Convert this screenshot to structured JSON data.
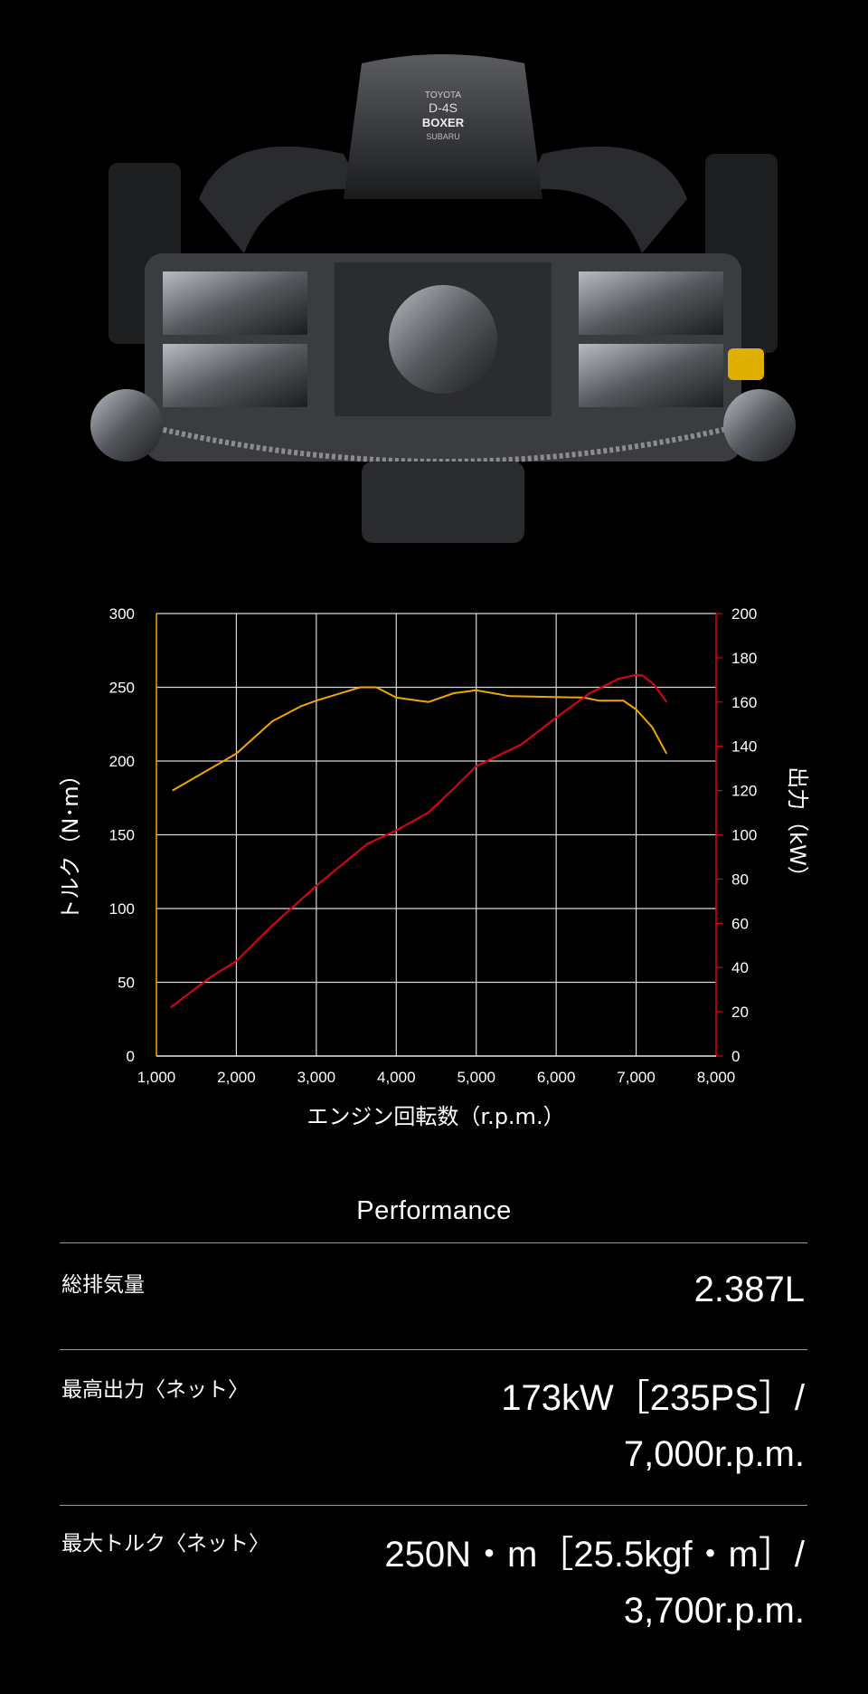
{
  "engine_image": {
    "badge_lines": [
      "TOYOTA",
      "D-4S",
      "BOXER",
      "SUBARU"
    ]
  },
  "chart_data": {
    "type": "line",
    "xlabel": "エンジン回転数（r.p.m.）",
    "ylabel_left": "トルク（N･m）",
    "ylabel_right": "出力（kW）",
    "xlim": [
      1000,
      8000
    ],
    "ylim_left": [
      0,
      300
    ],
    "ylim_right": [
      0,
      200
    ],
    "x_ticks": [
      "1,000",
      "2,000",
      "3,000",
      "4,000",
      "5,000",
      "6,000",
      "7,000",
      "8,000"
    ],
    "y_ticks_left": [
      "0",
      "50",
      "100",
      "150",
      "200",
      "250",
      "300"
    ],
    "y_ticks_right": [
      "0",
      "20",
      "40",
      "60",
      "80",
      "100",
      "120",
      "140",
      "160",
      "180",
      "200"
    ],
    "grid": true,
    "series": [
      {
        "axis": "left",
        "color": "#f0a800",
        "points": [
          [
            1200,
            180
          ],
          [
            2000,
            205
          ],
          [
            2450,
            227
          ],
          [
            2800,
            237
          ],
          [
            3000,
            241
          ],
          [
            3550,
            250
          ],
          [
            3750,
            250
          ],
          [
            4000,
            243
          ],
          [
            4400,
            240
          ],
          [
            4720,
            246
          ],
          [
            5000,
            248
          ],
          [
            5420,
            244
          ],
          [
            6350,
            243
          ],
          [
            6530,
            241
          ],
          [
            6840,
            241
          ],
          [
            7000,
            235
          ],
          [
            7200,
            223
          ],
          [
            7380,
            205
          ]
        ]
      },
      {
        "axis": "right",
        "color": "#e0001a",
        "points": [
          [
            1180,
            22
          ],
          [
            1650,
            35
          ],
          [
            2000,
            43
          ],
          [
            2450,
            59
          ],
          [
            3000,
            77
          ],
          [
            3640,
            96
          ],
          [
            4000,
            102
          ],
          [
            4400,
            110
          ],
          [
            4720,
            121
          ],
          [
            5000,
            131
          ],
          [
            5570,
            141
          ],
          [
            6000,
            153
          ],
          [
            6420,
            164
          ],
          [
            6780,
            170.5
          ],
          [
            7000,
            172.3
          ],
          [
            7080,
            172
          ],
          [
            7220,
            168
          ],
          [
            7380,
            160
          ]
        ]
      }
    ]
  },
  "performance": {
    "title": "Performance",
    "rows": [
      {
        "label": "総排気量",
        "value_lines": [
          "2.387L"
        ]
      },
      {
        "label": "最高出力〈ネット〉",
        "value_lines": [
          "173kW［235PS］/",
          "7,000r.p.m."
        ]
      },
      {
        "label": "最大トルク〈ネット〉",
        "value_lines": [
          "250N・m［25.5kgf・m］/",
          "3,700r.p.m."
        ]
      }
    ]
  }
}
